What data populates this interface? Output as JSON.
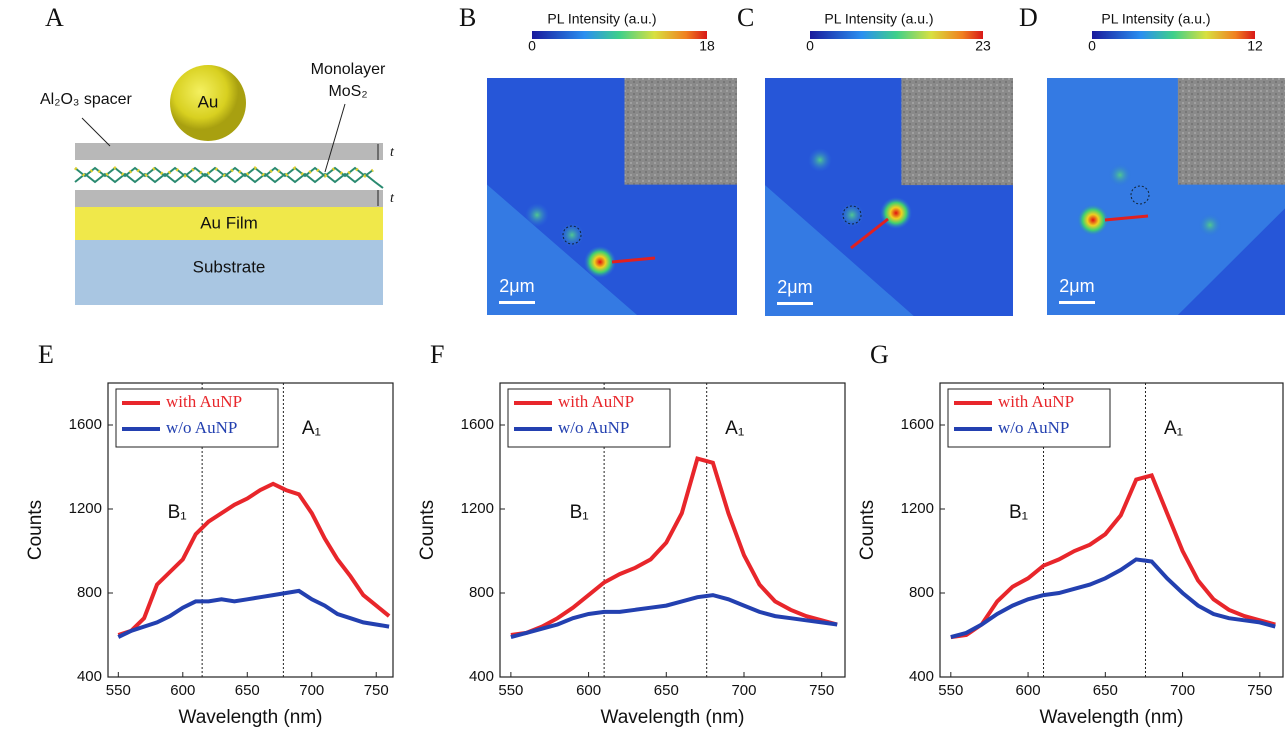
{
  "panel_a": {
    "letter": "A",
    "sphere": "Au",
    "spacer": "Al₂O₃ spacer",
    "mono1": "Monolayer",
    "mono2": "MoS₂",
    "t1": "t",
    "t2": "t",
    "film": "Au Film",
    "substrate": "Substrate"
  },
  "images": [
    {
      "letter": "B",
      "colorbar_title": "PL Intensity (a.u.)",
      "min": 0,
      "max": 18,
      "scale": "2μm"
    },
    {
      "letter": "C",
      "colorbar_title": "PL Intensity (a.u.)",
      "min": 0,
      "max": 23,
      "scale": "2μm"
    },
    {
      "letter": "D",
      "colorbar_title": "PL Intensity (a.u.)",
      "min": 0,
      "max": 12,
      "scale": "2μm"
    }
  ],
  "chart_data": [
    {
      "type": "line",
      "title": "E",
      "x_label": "Wavelength (nm)",
      "y_label": "Counts",
      "xlim": [
        542,
        763
      ],
      "ylim": [
        400,
        1800
      ],
      "xticks": [
        550,
        600,
        650,
        700,
        750
      ],
      "yticks": [
        400,
        800,
        1200,
        1600
      ],
      "x": [
        550,
        560,
        570,
        580,
        590,
        600,
        610,
        620,
        630,
        640,
        650,
        660,
        670,
        680,
        690,
        700,
        710,
        720,
        730,
        740,
        750,
        760
      ],
      "series": [
        {
          "name": "with AuNP",
          "color": "#e8262b",
          "values": [
            600,
            620,
            680,
            840,
            900,
            960,
            1080,
            1140,
            1180,
            1220,
            1250,
            1290,
            1320,
            1290,
            1270,
            1180,
            1060,
            960,
            880,
            790,
            740,
            690
          ]
        },
        {
          "name": "w/o AuNP",
          "color": "#2340b0",
          "values": [
            590,
            620,
            640,
            660,
            690,
            730,
            760,
            760,
            770,
            760,
            770,
            780,
            790,
            800,
            810,
            770,
            740,
            700,
            680,
            660,
            650,
            640
          ]
        }
      ],
      "annotations": [
        {
          "x": 615,
          "text": "B₁"
        },
        {
          "x": 678,
          "text": "A₁"
        }
      ]
    },
    {
      "type": "line",
      "title": "F",
      "x_label": "Wavelength (nm)",
      "y_label": "Counts",
      "xlim": [
        543,
        765
      ],
      "ylim": [
        400,
        1800
      ],
      "xticks": [
        550,
        600,
        650,
        700,
        750
      ],
      "yticks": [
        400,
        800,
        1200,
        1600
      ],
      "x": [
        550,
        560,
        570,
        580,
        590,
        600,
        610,
        620,
        630,
        640,
        650,
        660,
        670,
        680,
        690,
        700,
        710,
        720,
        730,
        740,
        750,
        760
      ],
      "series": [
        {
          "name": "with AuNP",
          "color": "#e8262b",
          "values": [
            600,
            610,
            640,
            680,
            730,
            790,
            850,
            890,
            920,
            960,
            1040,
            1180,
            1440,
            1420,
            1180,
            980,
            840,
            760,
            720,
            690,
            670,
            650
          ]
        },
        {
          "name": "w/o AuNP",
          "color": "#2340b0",
          "values": [
            590,
            610,
            630,
            650,
            680,
            700,
            710,
            710,
            720,
            730,
            740,
            760,
            780,
            790,
            770,
            740,
            710,
            690,
            680,
            670,
            660,
            650
          ]
        }
      ],
      "annotations": [
        {
          "x": 610,
          "text": "B₁"
        },
        {
          "x": 676,
          "text": "A₁"
        }
      ]
    },
    {
      "type": "line",
      "title": "G",
      "x_label": "Wavelength (nm)",
      "y_label": "Counts",
      "xlim": [
        543,
        765
      ],
      "ylim": [
        400,
        1800
      ],
      "xticks": [
        550,
        600,
        650,
        700,
        750
      ],
      "yticks": [
        400,
        800,
        1200,
        1600
      ],
      "x": [
        550,
        560,
        570,
        580,
        590,
        600,
        610,
        620,
        630,
        640,
        650,
        660,
        670,
        680,
        690,
        700,
        710,
        720,
        730,
        740,
        750,
        760
      ],
      "series": [
        {
          "name": "with AuNP",
          "color": "#e8262b",
          "values": [
            590,
            600,
            650,
            760,
            830,
            870,
            930,
            960,
            1000,
            1030,
            1080,
            1170,
            1340,
            1360,
            1180,
            1000,
            860,
            770,
            720,
            690,
            670,
            650
          ]
        },
        {
          "name": "w/o AuNP",
          "color": "#2340b0",
          "values": [
            590,
            610,
            650,
            700,
            740,
            770,
            790,
            800,
            820,
            840,
            870,
            910,
            960,
            950,
            870,
            800,
            740,
            700,
            680,
            670,
            660,
            640
          ]
        }
      ],
      "annotations": [
        {
          "x": 610,
          "text": "B₁"
        },
        {
          "x": 676,
          "text": "A₁"
        }
      ]
    }
  ]
}
